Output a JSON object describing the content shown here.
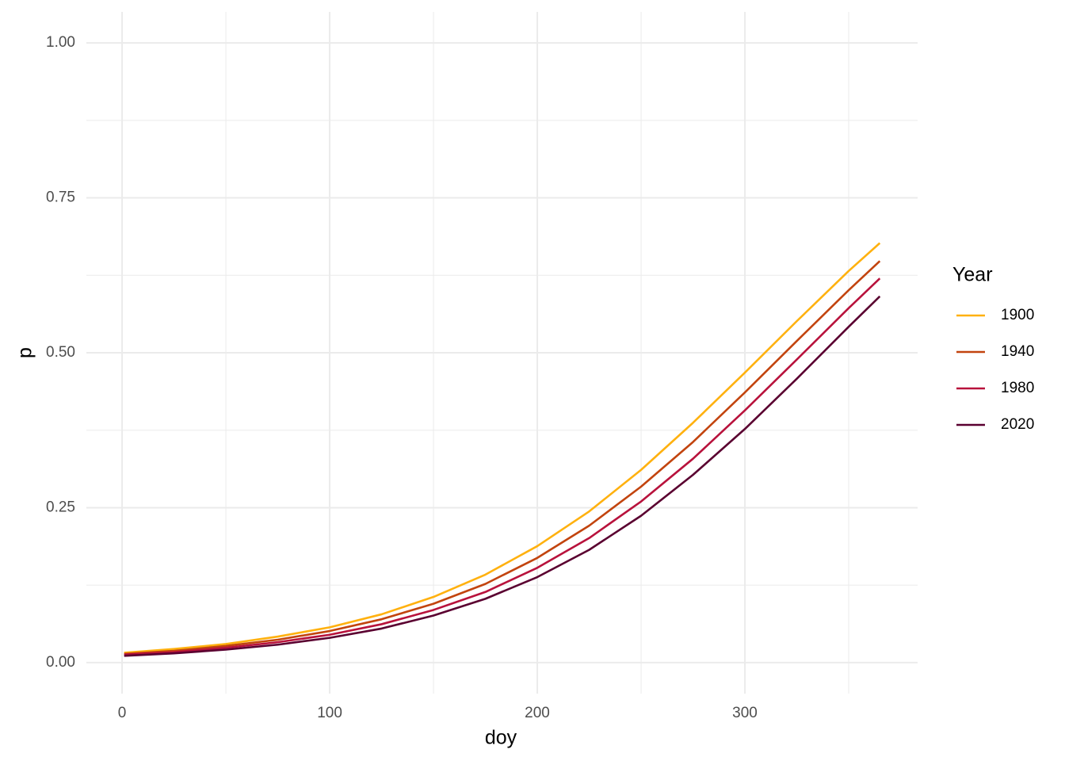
{
  "chart_data": {
    "type": "line",
    "x_label": "doy",
    "y_label": "p",
    "legend_title": "Year",
    "x": [
      1,
      25,
      50,
      75,
      100,
      125,
      150,
      175,
      200,
      225,
      250,
      275,
      300,
      325,
      350,
      365
    ],
    "series": [
      {
        "name": "1900",
        "color": "#ffb10f",
        "values": [
          0.016,
          0.022,
          0.03,
          0.042,
          0.057,
          0.078,
          0.106,
          0.142,
          0.188,
          0.244,
          0.311,
          0.387,
          0.468,
          0.551,
          0.632,
          0.677
        ]
      },
      {
        "name": "1940",
        "color": "#c2440e",
        "values": [
          0.014,
          0.019,
          0.027,
          0.037,
          0.051,
          0.07,
          0.095,
          0.127,
          0.169,
          0.221,
          0.284,
          0.356,
          0.436,
          0.519,
          0.601,
          0.648
        ]
      },
      {
        "name": "1980",
        "color": "#b8123c",
        "values": [
          0.013,
          0.017,
          0.024,
          0.033,
          0.045,
          0.062,
          0.085,
          0.114,
          0.153,
          0.201,
          0.26,
          0.329,
          0.407,
          0.489,
          0.572,
          0.62
        ]
      },
      {
        "name": "2020",
        "color": "#5a0030",
        "values": [
          0.011,
          0.015,
          0.021,
          0.029,
          0.04,
          0.055,
          0.076,
          0.103,
          0.138,
          0.182,
          0.237,
          0.303,
          0.377,
          0.458,
          0.542,
          0.591
        ]
      }
    ],
    "xlim": [
      -17.2,
      383.2
    ],
    "ylim": [
      -0.05,
      1.05
    ],
    "xticks": [
      0,
      100,
      200,
      300
    ],
    "yticks": [
      {
        "value": 0,
        "label": "0.00"
      },
      0.25,
      {
        "value": 0.5,
        "label": "0.50"
      },
      0.75,
      {
        "value": 1,
        "label": "1.00"
      }
    ],
    "x_minor_ticks": [
      50,
      150,
      250,
      350
    ],
    "y_minor_ticks": [
      0.125,
      0.375,
      0.625,
      0.875
    ],
    "grid": true,
    "legend_position": "right"
  }
}
